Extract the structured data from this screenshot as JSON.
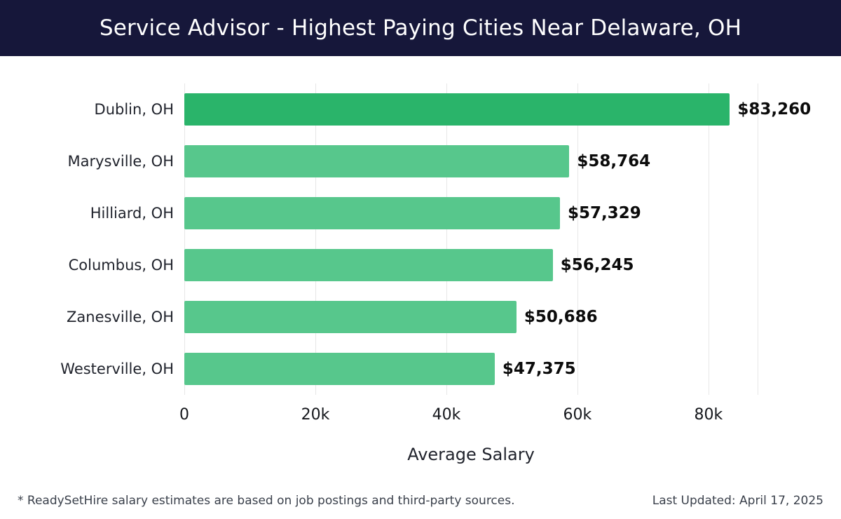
{
  "header": {
    "title": "Service Advisor - Highest Paying Cities Near Delaware, OH"
  },
  "chart_data": {
    "type": "bar",
    "orientation": "horizontal",
    "title": "Service Advisor - Highest Paying Cities Near Delaware, OH",
    "categories": [
      "Dublin, OH",
      "Marysville, OH",
      "Hilliard, OH",
      "Columbus, OH",
      "Zanesville, OH",
      "Westerville, OH"
    ],
    "values": [
      83260,
      58764,
      57329,
      56245,
      50686,
      47375
    ],
    "value_labels": [
      "$83,260",
      "$58,764",
      "$57,329",
      "$56,245",
      "$50,686",
      "$47,375"
    ],
    "xlabel": "Average Salary",
    "ylabel": "",
    "xlim": [
      0,
      87500
    ],
    "ticks": [
      {
        "value": 0,
        "label": "0"
      },
      {
        "value": 20000,
        "label": "20k"
      },
      {
        "value": 40000,
        "label": "40k"
      },
      {
        "value": 60000,
        "label": "60k"
      },
      {
        "value": 80000,
        "label": "80k"
      }
    ],
    "grid": true,
    "legend": false
  },
  "colors": {
    "header_bg": "#16173a",
    "title_text": "#ffffff",
    "bar_highlight": "#2ab46a",
    "bar_default": "#57c78c",
    "gridline": "#e7e7e7",
    "label_text": "#20232c",
    "tick_text": "#15171c",
    "value_text": "#0b0b0b",
    "footer_text": "#3a404b"
  },
  "footer": {
    "note": "* ReadySetHire salary estimates are based on job postings and third-party sources.",
    "last_updated": "Last Updated: April 17, 2025"
  }
}
